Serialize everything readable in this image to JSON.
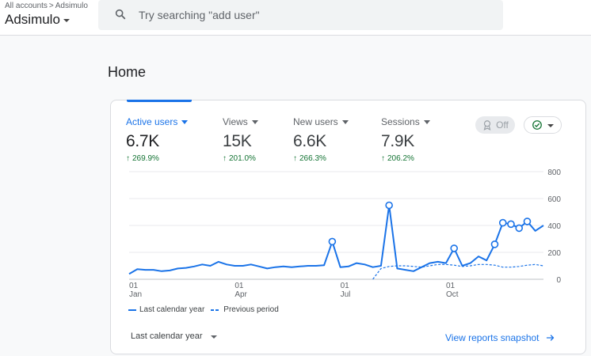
{
  "header": {
    "breadcrumb": [
      "All accounts",
      "Adsimulo"
    ],
    "account_name": "Adsimulo",
    "search_placeholder": "Try searching \"add user\""
  },
  "page": {
    "title": "Home"
  },
  "metrics": [
    {
      "label": "Active users",
      "value": "6.7K",
      "change": "269.9%",
      "active": true
    },
    {
      "label": "Views",
      "value": "15K",
      "change": "201.0%"
    },
    {
      "label": "New users",
      "value": "6.6K",
      "change": "266.3%"
    },
    {
      "label": "Sessions",
      "value": "7.9K",
      "change": "206.2%"
    }
  ],
  "controls": {
    "off_label": "Off"
  },
  "chart_data": {
    "type": "line",
    "ylim": [
      0,
      800
    ],
    "y_ticks": [
      "800",
      "600",
      "400",
      "200",
      "0"
    ],
    "x_tick_labels": [
      {
        "day": "01",
        "month": "Jan"
      },
      {
        "day": "01",
        "month": "Apr"
      },
      {
        "day": "01",
        "month": "Jul"
      },
      {
        "day": "01",
        "month": "Oct"
      }
    ],
    "series": [
      {
        "name": "Last calendar year",
        "style": "solid",
        "color": "#1a73e8",
        "values": [
          40,
          75,
          70,
          70,
          60,
          65,
          80,
          85,
          95,
          110,
          100,
          130,
          110,
          100,
          100,
          110,
          95,
          80,
          90,
          95,
          90,
          95,
          100,
          100,
          105,
          280,
          90,
          95,
          120,
          110,
          90,
          100,
          550,
          80,
          70,
          60,
          90,
          120,
          130,
          120,
          230,
          100,
          120,
          170,
          140,
          260,
          420,
          410,
          380,
          430,
          360,
          400
        ],
        "markers": [
          25,
          32,
          40,
          45,
          46,
          47,
          48,
          49
        ]
      },
      {
        "name": "Previous period",
        "style": "dashed",
        "color": "#1a73e8",
        "values": [
          null,
          null,
          null,
          null,
          null,
          null,
          null,
          null,
          null,
          null,
          null,
          null,
          null,
          null,
          null,
          null,
          null,
          null,
          null,
          null,
          null,
          null,
          null,
          null,
          null,
          null,
          null,
          null,
          null,
          null,
          0,
          80,
          95,
          100,
          100,
          95,
          90,
          100,
          110,
          110,
          105,
          95,
          100,
          110,
          110,
          105,
          90,
          90,
          95,
          105,
          110,
          100
        ]
      }
    ]
  },
  "legend": {
    "current": "Last calendar year",
    "previous": "Previous period"
  },
  "footer": {
    "period_label": "Last calendar year",
    "snapshot_link": "View reports snapshot"
  },
  "colors": {
    "accent": "#1a73e8",
    "positive": "#137333"
  }
}
